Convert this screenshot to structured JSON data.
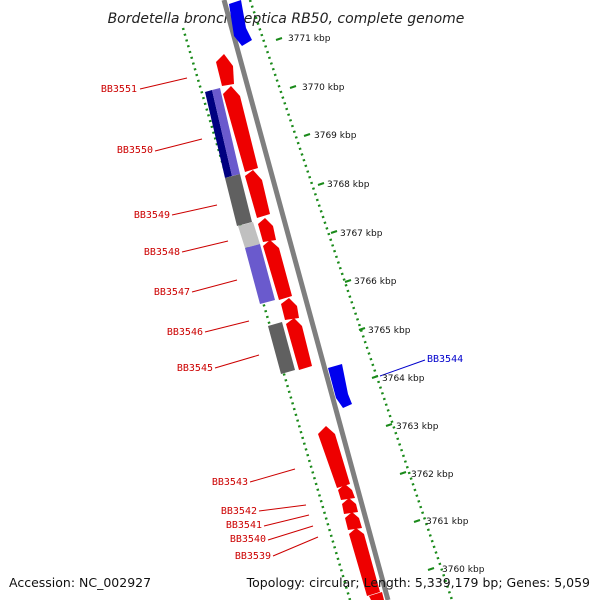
{
  "title": "Bordetella bronchiseptica RB50, complete genome",
  "footer": {
    "accession": "Accession: NC_002927",
    "summary": "Topology: circular; Length: 5,339,179 bp; Genes: 5,059"
  },
  "colors": {
    "backbone": "#7f7f7f",
    "dotted_track": "#1a8a1a",
    "label_red": "#cc0000",
    "label_blue": "#0000cc",
    "gene_red": "#ee0000",
    "gene_blue": "#0000ee",
    "gene_navy": "#000080",
    "gene_slate": "#6a5acd",
    "gene_dark_gray": "#606060",
    "gene_light_gray": "#c0c0c0"
  },
  "ruler_ticks": [
    "3771 kbp",
    "3770 kbp",
    "3769 kbp",
    "3768 kbp",
    "3767 kbp",
    "3766 kbp",
    "3765 kbp",
    "3764 kbp",
    "3763 kbp",
    "3762 kbp",
    "3761 kbp",
    "3760 kbp"
  ],
  "gene_labels": [
    "BB3551",
    "BB3550",
    "BB3549",
    "BB3548",
    "BB3547",
    "BB3546",
    "BB3545",
    "BB3544",
    "BB3543",
    "BB3542",
    "BB3541",
    "BB3540",
    "BB3539"
  ]
}
